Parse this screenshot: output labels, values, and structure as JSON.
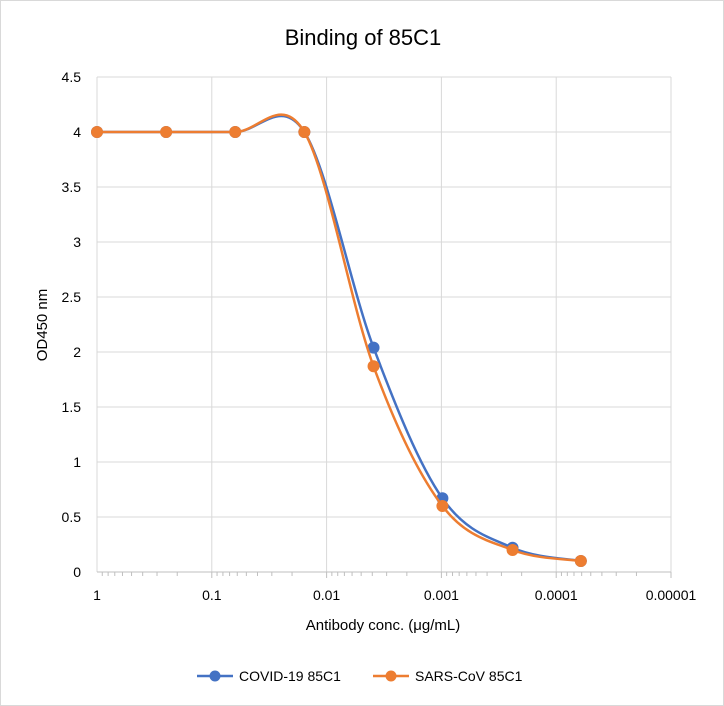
{
  "chart_data": {
    "type": "line",
    "title": "Binding of 85C1",
    "xlabel": "Antibody conc. (μg/mL)",
    "ylabel": "OD450 nm",
    "x_scale": "log",
    "x_reversed": true,
    "xlim": [
      1,
      1e-05
    ],
    "ylim": [
      0,
      4.5
    ],
    "x_tick_labels": [
      "1",
      "0.1",
      "0.01",
      "0.001",
      "0.0001",
      "0.00001"
    ],
    "y_tick_labels": [
      "0",
      "0.5",
      "1",
      "1.5",
      "2",
      "2.5",
      "3",
      "3.5",
      "4",
      "4.5"
    ],
    "grid": true,
    "legend_position": "bottom",
    "x": [
      1,
      0.25,
      0.0625,
      0.015625,
      0.0039,
      0.00098,
      0.00024,
      6.1e-05
    ],
    "series": [
      {
        "name": "COVID-19 85C1",
        "color": "#4472C4",
        "values": [
          4.0,
          4.0,
          4.0,
          4.0,
          2.04,
          0.67,
          0.22,
          0.1
        ]
      },
      {
        "name": "SARS-CoV 85C1",
        "color": "#ED7D31",
        "values": [
          4.0,
          4.0,
          4.0,
          4.0,
          1.87,
          0.6,
          0.2,
          0.1
        ]
      }
    ]
  }
}
